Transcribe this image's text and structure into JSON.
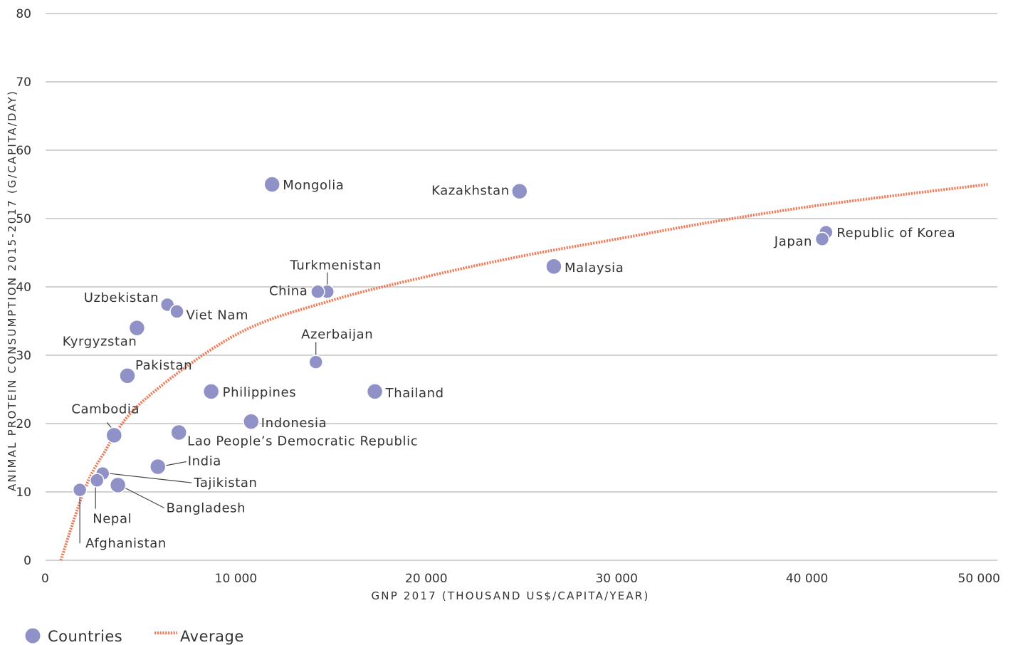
{
  "chart_data": {
    "type": "scatter",
    "xlabel": "GNP 2017 (THOUSAND US$/CAPITA/YEAR)",
    "ylabel": "ANIMAL PROTEIN CONSUMPTION 2015-2017 (G/CAPITA/DAY)",
    "xlim": [
      0,
      50000
    ],
    "ylim": [
      0,
      80
    ],
    "x_ticks": [
      {
        "value": 0,
        "label": "0"
      },
      {
        "value": 10000,
        "label": "10 000"
      },
      {
        "value": 20000,
        "label": "20 000"
      },
      {
        "value": 30000,
        "label": "30 000"
      },
      {
        "value": 40000,
        "label": "40 000"
      },
      {
        "value": 50000,
        "label": "50 000"
      }
    ],
    "y_ticks": [
      {
        "value": 0,
        "label": "0"
      },
      {
        "value": 10,
        "label": "10"
      },
      {
        "value": 20,
        "label": "20"
      },
      {
        "value": 30,
        "label": "30"
      },
      {
        "value": 40,
        "label": "40"
      },
      {
        "value": 50,
        "label": "50"
      },
      {
        "value": 60,
        "label": "60"
      },
      {
        "value": 70,
        "label": "70"
      },
      {
        "value": 80,
        "label": "80"
      }
    ],
    "grid": "horizontal",
    "legend_position": "bottom-left",
    "series": [
      {
        "name": "Countries",
        "color": "#9091c6",
        "points": [
          {
            "label": "Mongolia",
            "x": 11900,
            "y": 55.0
          },
          {
            "label": "Kazakhstan",
            "x": 24900,
            "y": 54.0
          },
          {
            "label": "Republic of Korea",
            "x": 41000,
            "y": 48.0
          },
          {
            "label": "Japan",
            "x": 40800,
            "y": 47.0
          },
          {
            "label": "Malaysia",
            "x": 26700,
            "y": 43.0
          },
          {
            "label": "Turkmenistan",
            "x": 14800,
            "y": 39.3
          },
          {
            "label": "China",
            "x": 14300,
            "y": 39.3
          },
          {
            "label": "Uzbekistan",
            "x": 6400,
            "y": 37.4
          },
          {
            "label": "Viet Nam",
            "x": 6900,
            "y": 36.4
          },
          {
            "label": "Kyrgyzstan",
            "x": 4800,
            "y": 34.0
          },
          {
            "label": "Azerbaijan",
            "x": 14200,
            "y": 29.0
          },
          {
            "label": "Pakistan",
            "x": 4300,
            "y": 27.0
          },
          {
            "label": "Philippines",
            "x": 8700,
            "y": 24.7
          },
          {
            "label": "Thailand",
            "x": 17300,
            "y": 24.7
          },
          {
            "label": "Indonesia",
            "x": 10800,
            "y": 20.3
          },
          {
            "label": "Lao People’s Democratic Republic",
            "x": 7000,
            "y": 18.7
          },
          {
            "label": "Cambodia",
            "x": 3600,
            "y": 18.3
          },
          {
            "label": "India",
            "x": 5900,
            "y": 13.7
          },
          {
            "label": "Tajikistan",
            "x": 3000,
            "y": 12.7
          },
          {
            "label": "Nepal",
            "x": 2700,
            "y": 11.7
          },
          {
            "label": "Bangladesh",
            "x": 3800,
            "y": 11.0
          },
          {
            "label": "Afghanistan",
            "x": 1800,
            "y": 10.3
          }
        ]
      },
      {
        "name": "Average",
        "color": "#ee7b5a",
        "type": "line",
        "style": "dotted",
        "fit": "logarithmic",
        "points": [
          {
            "x": 800,
            "y": 0
          },
          {
            "x": 2000,
            "y": 10.0
          },
          {
            "x": 3000,
            "y": 15.4
          },
          {
            "x": 5000,
            "y": 23.0
          },
          {
            "x": 10000,
            "y": 33.0
          },
          {
            "x": 15000,
            "y": 38.0
          },
          {
            "x": 20000,
            "y": 41.5
          },
          {
            "x": 25000,
            "y": 44.5
          },
          {
            "x": 30000,
            "y": 47.0
          },
          {
            "x": 35000,
            "y": 49.5
          },
          {
            "x": 40000,
            "y": 51.7
          },
          {
            "x": 45000,
            "y": 53.5
          },
          {
            "x": 49500,
            "y": 55.0
          }
        ]
      }
    ]
  },
  "legend": {
    "countries_label": "Countries",
    "average_label": "Average"
  }
}
